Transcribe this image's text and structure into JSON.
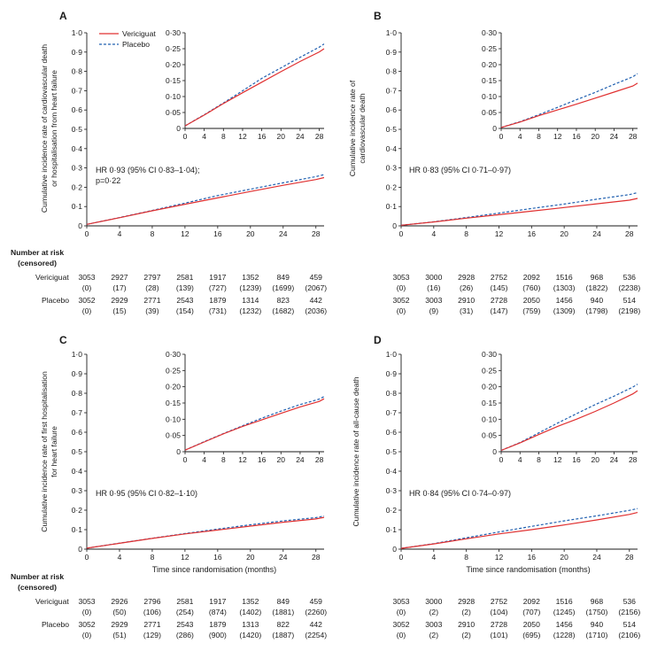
{
  "legend": {
    "vericiguat": "Vericiguat",
    "placebo": "Placebo",
    "vericiguat_color": "#e03030",
    "placebo_color": "#2060b0"
  },
  "risk_table": {
    "header_line1": "Number at risk",
    "header_line2": "(censored)",
    "row_label_vericiguat": "Vericiguat",
    "row_label_placebo": "Placebo"
  },
  "main_yticks": [
    "0",
    "0·1",
    "0·2",
    "0·3",
    "0·4",
    "0·5",
    "0·6",
    "0·7",
    "0·8",
    "0·9",
    "1·0"
  ],
  "inset_yticks": [
    "0",
    "0·05",
    "0·10",
    "0·15",
    "0·20",
    "0·25",
    "0·30"
  ],
  "xticks": [
    "0",
    "4",
    "8",
    "12",
    "16",
    "20",
    "24",
    "28"
  ],
  "chart_data": [
    {
      "panel": "A",
      "type": "line",
      "ylabel": "Cumulative incidence rate of cardiovascular death\nor hospitalisation from heart failure",
      "xlabel": "",
      "annotation": "HR 0·93 (95% CI 0·83–1·04);\np=0·22",
      "xlim": [
        0,
        29
      ],
      "ylim": [
        0,
        1.0
      ],
      "inset_ylim": [
        0,
        0.3
      ],
      "x": [
        0,
        4,
        8,
        12,
        16,
        20,
        24,
        28,
        29
      ],
      "series": [
        {
          "name": "Vericiguat",
          "values": [
            0.008,
            0.042,
            0.078,
            0.112,
            0.145,
            0.178,
            0.21,
            0.24,
            0.25
          ]
        },
        {
          "name": "Placebo",
          "values": [
            0.008,
            0.043,
            0.08,
            0.118,
            0.157,
            0.19,
            0.223,
            0.255,
            0.265
          ]
        }
      ],
      "at_risk": {
        "vericiguat": [
          "3053",
          "2927",
          "2797",
          "2581",
          "1917",
          "1352",
          "849",
          "459"
        ],
        "vericiguat_censored": [
          "(0)",
          "(17)",
          "(28)",
          "(139)",
          "(727)",
          "(1239)",
          "(1699)",
          "(2067)"
        ],
        "placebo": [
          "3052",
          "2929",
          "2771",
          "2543",
          "1879",
          "1314",
          "823",
          "442"
        ],
        "placebo_censored": [
          "(0)",
          "(15)",
          "(39)",
          "(154)",
          "(731)",
          "(1232)",
          "(1682)",
          "(2036)"
        ]
      }
    },
    {
      "panel": "B",
      "type": "line",
      "ylabel": "Cumulative incidence rate of\ncardiovascular death",
      "xlabel": "",
      "annotation": "HR 0·83 (95% CI 0·71–0·97)",
      "xlim": [
        0,
        29
      ],
      "ylim": [
        0,
        1.0
      ],
      "inset_ylim": [
        0,
        0.3
      ],
      "x": [
        0,
        4,
        8,
        12,
        16,
        20,
        24,
        28,
        29
      ],
      "series": [
        {
          "name": "Vericiguat",
          "values": [
            0.003,
            0.02,
            0.04,
            0.058,
            0.076,
            0.095,
            0.114,
            0.133,
            0.142
          ]
        },
        {
          "name": "Placebo",
          "values": [
            0.003,
            0.021,
            0.043,
            0.066,
            0.09,
            0.113,
            0.138,
            0.162,
            0.172
          ]
        }
      ],
      "at_risk": {
        "vericiguat": [
          "3053",
          "3000",
          "2928",
          "2752",
          "2092",
          "1516",
          "968",
          "536"
        ],
        "vericiguat_censored": [
          "(0)",
          "(16)",
          "(26)",
          "(145)",
          "(760)",
          "(1303)",
          "(1822)",
          "(2238)"
        ],
        "placebo": [
          "3052",
          "3003",
          "2910",
          "2728",
          "2050",
          "1456",
          "940",
          "514"
        ],
        "placebo_censored": [
          "(0)",
          "(9)",
          "(31)",
          "(147)",
          "(759)",
          "(1309)",
          "(1798)",
          "(2198)"
        ]
      }
    },
    {
      "panel": "C",
      "type": "line",
      "ylabel": "Cumulative incidence rate of first hospitalisation\nfor heart failure",
      "xlabel": "Time since randomisation (months)",
      "annotation": "HR 0·95 (95% CI 0·82–1·10)",
      "xlim": [
        0,
        29
      ],
      "ylim": [
        0,
        1.0
      ],
      "inset_ylim": [
        0,
        0.3
      ],
      "x": [
        0,
        4,
        8,
        12,
        16,
        20,
        24,
        28,
        29
      ],
      "series": [
        {
          "name": "Vericiguat",
          "values": [
            0.005,
            0.03,
            0.055,
            0.078,
            0.098,
            0.118,
            0.138,
            0.155,
            0.163
          ]
        },
        {
          "name": "Placebo",
          "values": [
            0.005,
            0.031,
            0.056,
            0.08,
            0.103,
            0.125,
            0.145,
            0.162,
            0.17
          ]
        }
      ],
      "at_risk": {
        "vericiguat": [
          "3053",
          "2926",
          "2796",
          "2581",
          "1917",
          "1352",
          "849",
          "459"
        ],
        "vericiguat_censored": [
          "(0)",
          "(50)",
          "(106)",
          "(254)",
          "(874)",
          "(1402)",
          "(1881)",
          "(2260)"
        ],
        "placebo": [
          "3052",
          "2929",
          "2771",
          "2543",
          "1879",
          "1313",
          "822",
          "442"
        ],
        "placebo_censored": [
          "(0)",
          "(51)",
          "(129)",
          "(286)",
          "(900)",
          "(1420)",
          "(1887)",
          "(2254)"
        ]
      }
    },
    {
      "panel": "D",
      "type": "line",
      "ylabel": "Cumulative incidence rate of all-cause death",
      "xlabel": "Time since randomisation (months)",
      "annotation": "HR 0·84 (95% CI 0·74–0·97)",
      "xlim": [
        0,
        29
      ],
      "ylim": [
        0,
        1.0
      ],
      "inset_ylim": [
        0,
        0.3
      ],
      "x": [
        0,
        4,
        8,
        12,
        16,
        20,
        24,
        28,
        29
      ],
      "series": [
        {
          "name": "Vericiguat",
          "values": [
            0.004,
            0.027,
            0.053,
            0.078,
            0.1,
            0.124,
            0.15,
            0.178,
            0.188
          ]
        },
        {
          "name": "Placebo",
          "values": [
            0.004,
            0.028,
            0.058,
            0.088,
            0.117,
            0.145,
            0.171,
            0.199,
            0.208
          ]
        }
      ],
      "at_risk": {
        "vericiguat": [
          "3053",
          "3000",
          "2928",
          "2752",
          "2092",
          "1516",
          "968",
          "536"
        ],
        "vericiguat_censored": [
          "(0)",
          "(2)",
          "(2)",
          "(104)",
          "(707)",
          "(1245)",
          "(1750)",
          "(2156)"
        ],
        "placebo": [
          "3052",
          "3003",
          "2910",
          "2728",
          "2050",
          "1456",
          "940",
          "514"
        ],
        "placebo_censored": [
          "(0)",
          "(2)",
          "(2)",
          "(101)",
          "(695)",
          "(1228)",
          "(1710)",
          "(2106)"
        ]
      }
    }
  ]
}
